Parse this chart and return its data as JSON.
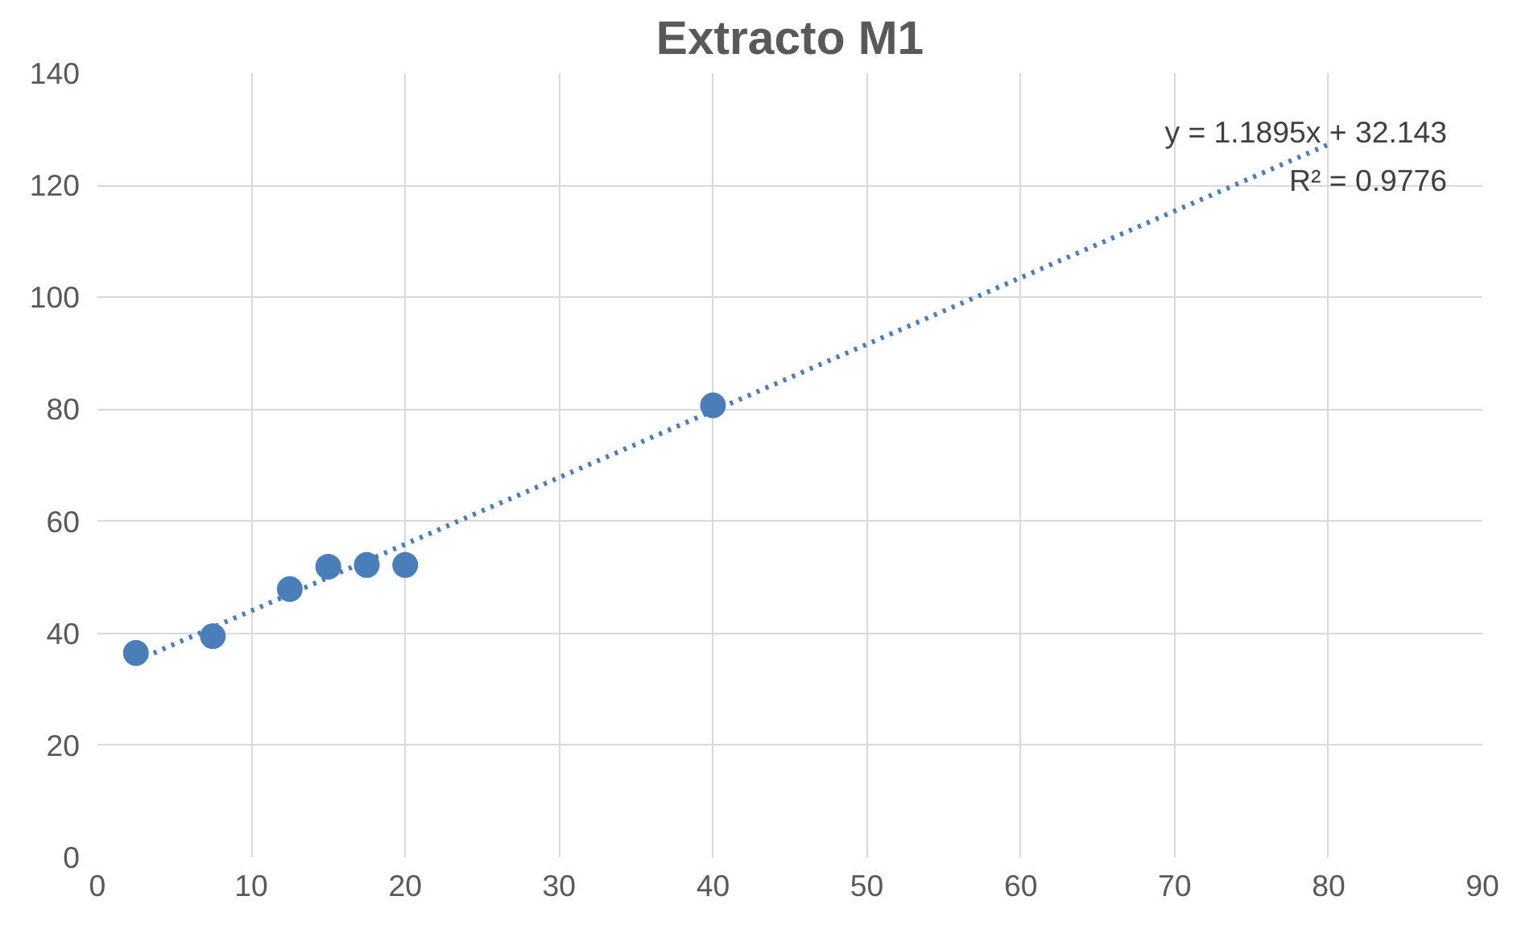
{
  "chart_data": {
    "type": "scatter",
    "title": "Extracto M1",
    "series": [
      {
        "color": "#4a7ebb",
        "marker": "circle",
        "x": [
          2.5,
          7.5,
          12.5,
          15,
          17.5,
          20,
          40
        ],
        "values": [
          36.5,
          39.5,
          47.9,
          51.9,
          52.2,
          52.2,
          80.7
        ]
      },
      {
        "type": "line",
        "color": "#4a7ebb",
        "line_style": "dotted",
        "x": [
          2.5,
          80
        ],
        "values": [
          35.1,
          127.3
        ]
      }
    ],
    "annotations": [
      "y = 1.1895x + 32.143",
      "R² = 0.9776"
    ],
    "xlim": [
      0,
      90
    ],
    "xticks": [
      0,
      10,
      20,
      30,
      40,
      50,
      60,
      70,
      80,
      90
    ],
    "ylim": [
      0,
      140
    ],
    "yticks": [
      0,
      20,
      40,
      60,
      80,
      100,
      120,
      140
    ],
    "grid": true
  }
}
